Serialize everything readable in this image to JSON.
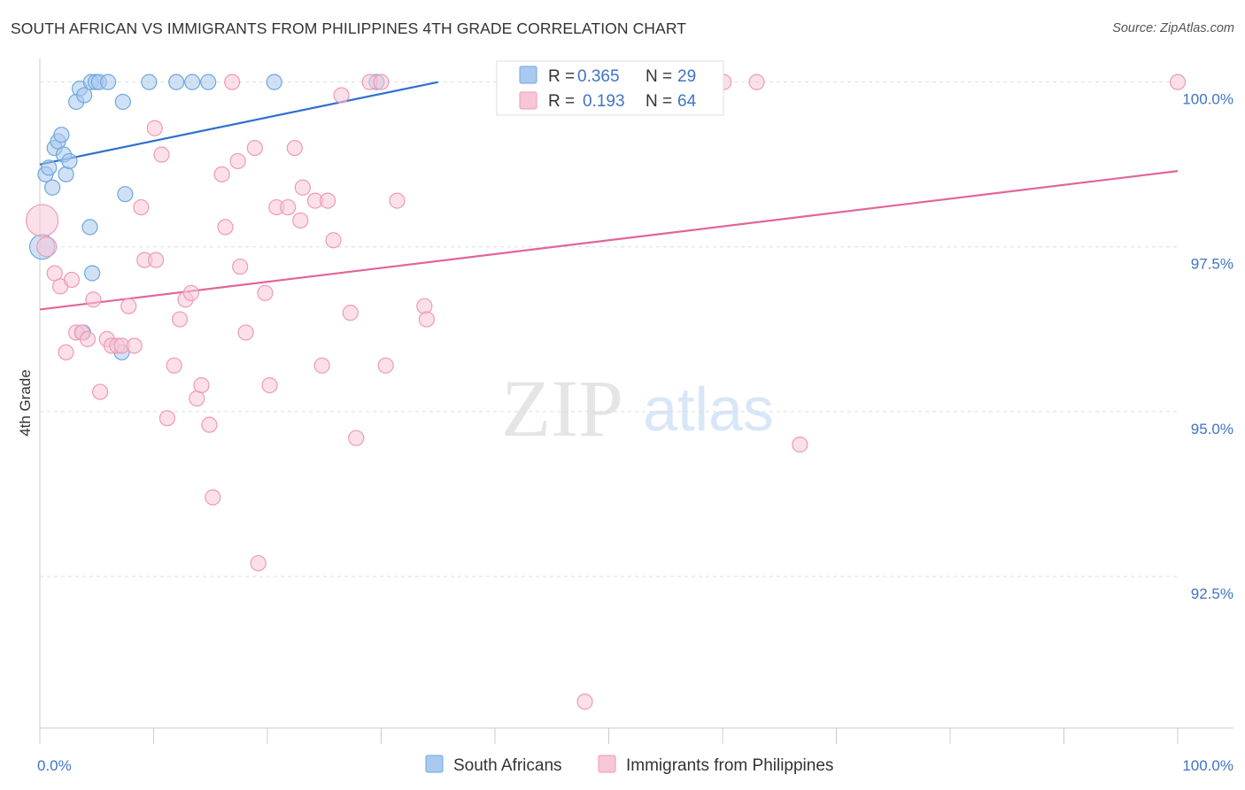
{
  "chart_data": {
    "type": "scatter",
    "title": "SOUTH AFRICAN VS IMMIGRANTS FROM PHILIPPINES 4TH GRADE CORRELATION CHART",
    "source": "Source: ZipAtlas.com",
    "xlabel": "",
    "ylabel": "4th Grade",
    "xlim": [
      0,
      100
    ],
    "ylim": [
      90.2,
      100.6
    ],
    "x_tick_labels": [
      {
        "value": 0,
        "label": "0.0%"
      },
      {
        "value": 100,
        "label": "100.0%"
      }
    ],
    "x_minor_ticks": [
      0,
      10,
      20,
      30,
      40,
      50,
      60,
      70,
      80,
      90,
      100
    ],
    "y_ticks": [
      {
        "value": 100.0,
        "label": "100.0%"
      },
      {
        "value": 97.5,
        "label": "97.5%"
      },
      {
        "value": 95.0,
        "label": "95.0%"
      },
      {
        "value": 92.5,
        "label": "92.5%"
      }
    ],
    "grid": true,
    "watermark": {
      "part1": "ZIP",
      "part2": "atlas"
    },
    "legend_top": {
      "r_label": "R =",
      "n_label": "N =",
      "entries": [
        {
          "r": "0.365",
          "n": "29"
        },
        {
          "r": "0.193",
          "n": "64"
        }
      ]
    },
    "series": [
      {
        "name": "South Africans",
        "color": "#6fa8dc",
        "fill": "#a9c9ef",
        "line_color": "#2f6fce",
        "trend": {
          "x": [
            0,
            35
          ],
          "y": [
            98.75,
            100.0
          ]
        },
        "points": [
          {
            "x": 0.2,
            "y": 97.5,
            "s": 14
          },
          {
            "x": 0.5,
            "y": 98.6
          },
          {
            "x": 0.8,
            "y": 98.7
          },
          {
            "x": 1.1,
            "y": 98.4
          },
          {
            "x": 1.3,
            "y": 99.0
          },
          {
            "x": 1.6,
            "y": 99.1
          },
          {
            "x": 1.9,
            "y": 99.2
          },
          {
            "x": 2.1,
            "y": 98.9
          },
          {
            "x": 2.3,
            "y": 98.6
          },
          {
            "x": 2.6,
            "y": 98.8
          },
          {
            "x": 3.2,
            "y": 99.7
          },
          {
            "x": 3.5,
            "y": 99.9
          },
          {
            "x": 3.9,
            "y": 99.8
          },
          {
            "x": 4.4,
            "y": 97.8
          },
          {
            "x": 4.5,
            "y": 100.0
          },
          {
            "x": 4.6,
            "y": 97.1
          },
          {
            "x": 4.9,
            "y": 100.0
          },
          {
            "x": 5.2,
            "y": 100.0
          },
          {
            "x": 6.0,
            "y": 100.0
          },
          {
            "x": 7.3,
            "y": 99.7
          },
          {
            "x": 7.5,
            "y": 98.3
          },
          {
            "x": 9.6,
            "y": 100.0
          },
          {
            "x": 12.0,
            "y": 100.0
          },
          {
            "x": 13.4,
            "y": 100.0
          },
          {
            "x": 14.8,
            "y": 100.0
          },
          {
            "x": 20.6,
            "y": 100.0
          },
          {
            "x": 29.6,
            "y": 100.0
          },
          {
            "x": 3.8,
            "y": 96.2
          },
          {
            "x": 7.2,
            "y": 95.9
          }
        ]
      },
      {
        "name": "Immigrants from Philippines",
        "color": "#ee9ab7",
        "fill": "#f8c6d7",
        "line_color": "#e0659a",
        "trend": {
          "x": [
            0,
            100
          ],
          "y": [
            96.55,
            98.65
          ]
        },
        "points": [
          {
            "x": 0.2,
            "y": 97.9,
            "s": 18
          },
          {
            "x": 0.6,
            "y": 97.5,
            "s": 11
          },
          {
            "x": 1.3,
            "y": 97.1
          },
          {
            "x": 1.8,
            "y": 96.9
          },
          {
            "x": 2.3,
            "y": 95.9
          },
          {
            "x": 2.8,
            "y": 97.0
          },
          {
            "x": 3.2,
            "y": 96.2
          },
          {
            "x": 3.7,
            "y": 96.2
          },
          {
            "x": 4.2,
            "y": 96.1
          },
          {
            "x": 4.7,
            "y": 96.7
          },
          {
            "x": 5.3,
            "y": 95.3
          },
          {
            "x": 5.9,
            "y": 96.1
          },
          {
            "x": 6.3,
            "y": 96.0
          },
          {
            "x": 6.8,
            "y": 96.0
          },
          {
            "x": 7.2,
            "y": 96.0
          },
          {
            "x": 7.8,
            "y": 96.6
          },
          {
            "x": 8.3,
            "y": 96.0
          },
          {
            "x": 8.9,
            "y": 98.1
          },
          {
            "x": 9.2,
            "y": 97.3
          },
          {
            "x": 10.1,
            "y": 99.3
          },
          {
            "x": 10.2,
            "y": 97.3
          },
          {
            "x": 10.7,
            "y": 98.9
          },
          {
            "x": 11.2,
            "y": 94.9
          },
          {
            "x": 11.8,
            "y": 95.7
          },
          {
            "x": 12.3,
            "y": 96.4
          },
          {
            "x": 12.8,
            "y": 96.7
          },
          {
            "x": 13.3,
            "y": 96.8
          },
          {
            "x": 13.8,
            "y": 95.2
          },
          {
            "x": 14.2,
            "y": 95.4
          },
          {
            "x": 14.9,
            "y": 94.8
          },
          {
            "x": 15.2,
            "y": 93.7
          },
          {
            "x": 16.0,
            "y": 98.6
          },
          {
            "x": 16.3,
            "y": 97.8
          },
          {
            "x": 17.4,
            "y": 98.8
          },
          {
            "x": 17.6,
            "y": 97.2
          },
          {
            "x": 18.1,
            "y": 96.2
          },
          {
            "x": 18.9,
            "y": 99.0
          },
          {
            "x": 19.2,
            "y": 92.7
          },
          {
            "x": 19.8,
            "y": 96.8
          },
          {
            "x": 20.2,
            "y": 95.4
          },
          {
            "x": 20.8,
            "y": 98.1
          },
          {
            "x": 21.8,
            "y": 98.1
          },
          {
            "x": 22.4,
            "y": 99.0
          },
          {
            "x": 22.9,
            "y": 97.9
          },
          {
            "x": 23.1,
            "y": 98.4
          },
          {
            "x": 24.2,
            "y": 98.2
          },
          {
            "x": 24.8,
            "y": 95.7
          },
          {
            "x": 25.3,
            "y": 98.2
          },
          {
            "x": 25.8,
            "y": 97.6
          },
          {
            "x": 26.5,
            "y": 99.8
          },
          {
            "x": 27.3,
            "y": 96.5
          },
          {
            "x": 27.8,
            "y": 94.6
          },
          {
            "x": 29.0,
            "y": 100.0
          },
          {
            "x": 30.0,
            "y": 100.0
          },
          {
            "x": 30.4,
            "y": 95.7
          },
          {
            "x": 31.4,
            "y": 98.2
          },
          {
            "x": 33.8,
            "y": 96.6
          },
          {
            "x": 34.0,
            "y": 96.4
          },
          {
            "x": 16.9,
            "y": 100.0
          },
          {
            "x": 47.9,
            "y": 90.6
          },
          {
            "x": 60.1,
            "y": 100.0
          },
          {
            "x": 63.0,
            "y": 100.0
          },
          {
            "x": 66.8,
            "y": 94.5
          },
          {
            "x": 100.0,
            "y": 100.0
          }
        ]
      }
    ]
  }
}
